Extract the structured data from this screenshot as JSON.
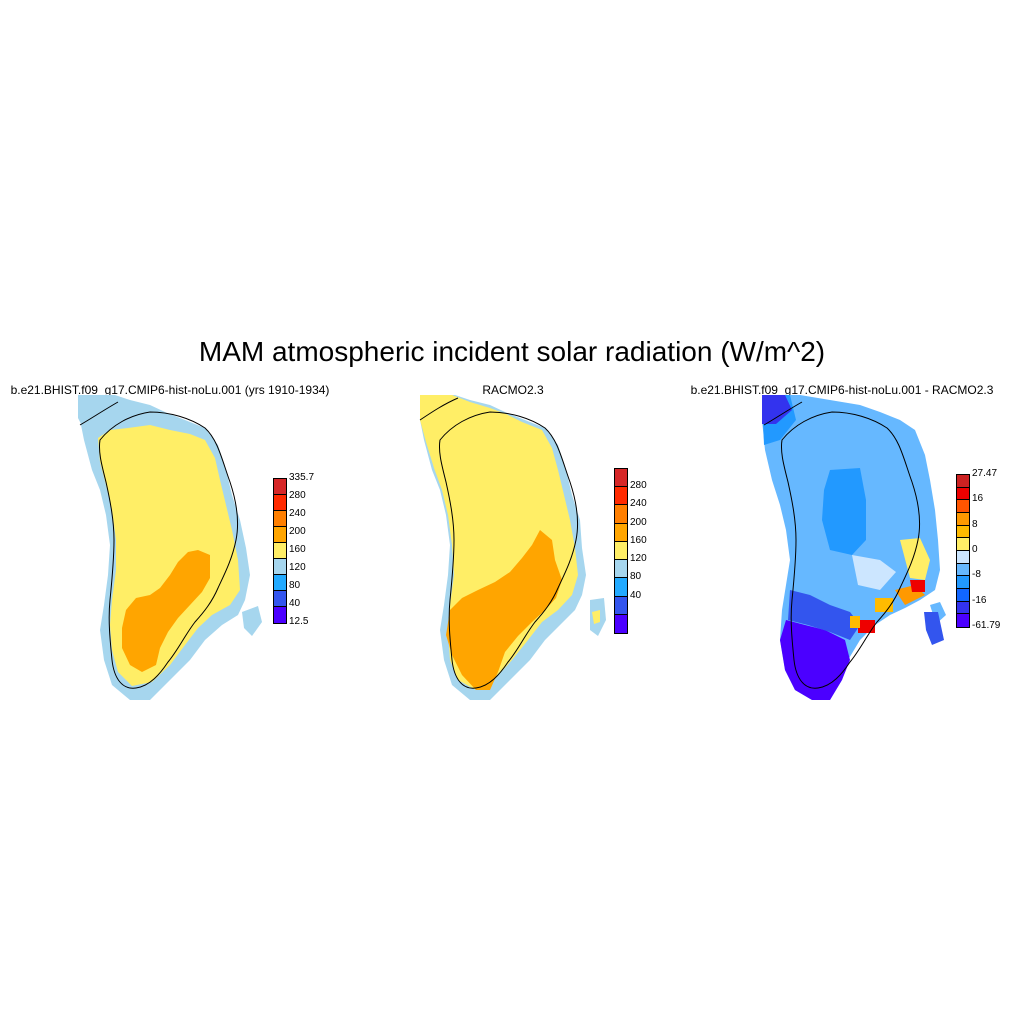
{
  "title": "MAM atmospheric incident solar radiation (W/m^2)",
  "panels": [
    {
      "title": "b.e21.BHIST.f09_g17.CMIP6-hist-noLu.001 (yrs 1910-1934)",
      "colorbar": {
        "labels": [
          "335.7",
          "280",
          "240",
          "200",
          "160",
          "120",
          "80",
          "40",
          "12.5"
        ],
        "colors": [
          "#d62728",
          "#ff2a00",
          "#ff7f00",
          "#ffa500",
          "#ffee66",
          "#a6d6ee",
          "#22aaff",
          "#3355ee",
          "#4b00ff"
        ]
      }
    },
    {
      "title": "RACMO2.3",
      "colorbar": {
        "labels": [
          "280",
          "240",
          "200",
          "160",
          "120",
          "80",
          "40"
        ],
        "colors": [
          "#d62728",
          "#ff2a00",
          "#ff7f00",
          "#ffa500",
          "#ffee66",
          "#a6d6ee",
          "#22aaff",
          "#3355ee",
          "#4b00ff"
        ]
      }
    },
    {
      "title": "b.e21.BHIST.f09_g17.CMIP6-hist-noLu.001 - RACMO2.3",
      "colorbar": {
        "labels": [
          "27.47",
          "16",
          "8",
          "0",
          "-8",
          "-16",
          "-61.79"
        ],
        "colors": [
          "#cc2222",
          "#ee0000",
          "#ff5500",
          "#ff9900",
          "#ffbb00",
          "#ffee66",
          "#cce6ff",
          "#66b8ff",
          "#2299ff",
          "#1166ff",
          "#3333ee",
          "#4b00ff"
        ]
      }
    }
  ]
}
